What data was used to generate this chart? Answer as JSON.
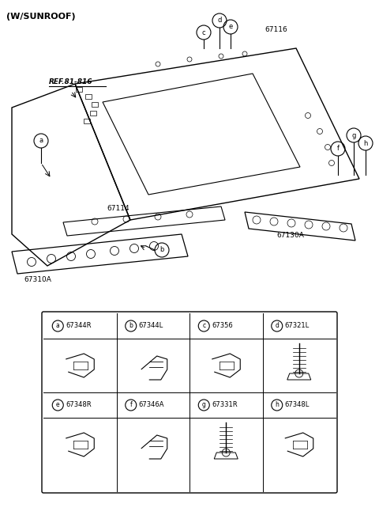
{
  "title": "(W/SUNROOF)",
  "bg": "#ffffff",
  "table": {
    "items_row1": [
      {
        "label": "a",
        "part": "67344R"
      },
      {
        "label": "b",
        "part": "67344L"
      },
      {
        "label": "c",
        "part": "67356"
      },
      {
        "label": "d",
        "part": "67321L"
      }
    ],
    "items_row2": [
      {
        "label": "e",
        "part": "67348R"
      },
      {
        "label": "f",
        "part": "67346A"
      },
      {
        "label": "g",
        "part": "67331R"
      },
      {
        "label": "h",
        "part": "67348L"
      }
    ]
  }
}
